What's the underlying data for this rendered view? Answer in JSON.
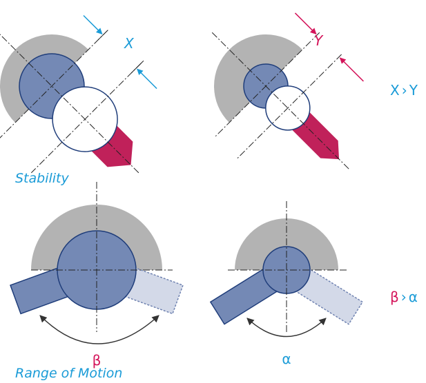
{
  "stability": {
    "title": "Stability",
    "label_left": "X",
    "label_right": "Y",
    "comparison": {
      "left": "X",
      "sign": "›",
      "right": "Y"
    }
  },
  "range_of_motion": {
    "title": "Range of Motion",
    "label_left": "β",
    "label_right": "α",
    "comparison": {
      "left": "β",
      "sign": "›",
      "right": "α"
    }
  }
}
